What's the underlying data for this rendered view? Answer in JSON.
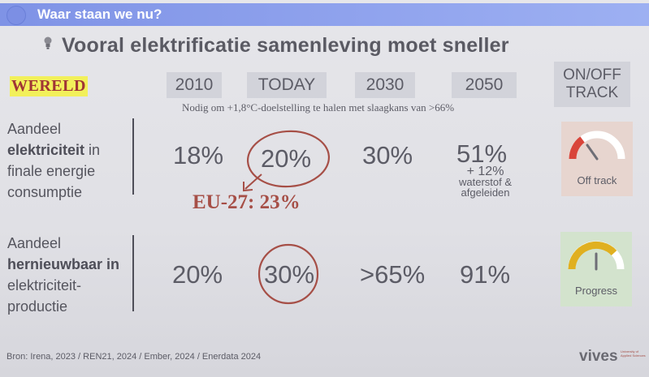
{
  "header": {
    "title": "Waar staan we nu?"
  },
  "slide": {
    "title": "Vooral elektrificatie samenleving moet sneller",
    "region": "WERELD",
    "columns": [
      "2010",
      "TODAY",
      "2030",
      "2050"
    ],
    "track_header_line1": "ON/OFF",
    "track_header_line2": "TRACK",
    "note": "Nodig om +1,8°C-doelstelling te halen met slaagkans van >66%",
    "rows": [
      {
        "label_line1": "Aandeel",
        "label_bold": "elektriciteit",
        "label_after_bold": " in",
        "label_line3": "finale energie",
        "label_line4": "consumptie",
        "values": [
          "18%",
          "20%",
          "30%",
          "51%"
        ],
        "sub_line1": "+ 12%",
        "sub_line2": "waterstof &",
        "sub_line3": "afgeleiden",
        "status": "Off track"
      },
      {
        "label_line1": "Aandeel",
        "label_bold": "hernieuwbaar in",
        "label_line3": "elektriciteit-",
        "label_line4": "productie",
        "values": [
          "20%",
          "30%",
          ">65%",
          "91%"
        ],
        "status": "Progress"
      }
    ],
    "eu_note": "EU-27: 23%",
    "source": "Bron: Irena, 2023 / REN21, 2024 / Ember, 2024 / Enerdata 2024",
    "logo": "vives",
    "logo_small": "University of Applied Sciences"
  },
  "colors": {
    "topbar": "#8a9eec",
    "accent_red": "#a64f47",
    "highlight": "#f2f05a",
    "off_track_bg": "#e7d5cf",
    "progress_bg": "#d3e3cd"
  }
}
